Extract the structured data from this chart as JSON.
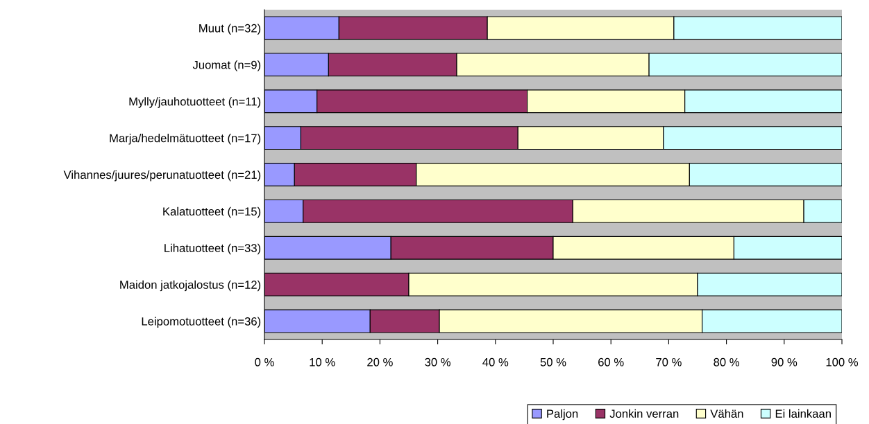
{
  "chart_data": {
    "type": "bar",
    "orientation": "horizontal",
    "stacked": true,
    "categories": [
      "Muut (n=32)",
      "Juomat (n=9)",
      "Mylly/jauhotuotteet (n=11)",
      "Marja/hedelmätuotteet (n=17)",
      "Vihannes/juures/perunatuotteet (n=21)",
      "Kalatuotteet (n=15)",
      "Lihatuotteet (n=33)",
      "Maidon jatkojalostus (n=12)",
      "Leipomotuotteet (n=36)"
    ],
    "series": [
      {
        "name": "Paljon",
        "color": "#9999ff",
        "values": [
          12.9,
          11.1,
          9.1,
          6.3,
          5.2,
          6.7,
          21.9,
          0,
          18.3
        ]
      },
      {
        "name": "Jonkin verran",
        "color": "#993366",
        "values": [
          25.7,
          22.2,
          36.4,
          37.6,
          21.1,
          46.7,
          28.1,
          25,
          12.0
        ]
      },
      {
        "name": "Vähän",
        "color": "#ffffcc",
        "values": [
          32.3,
          33.3,
          27.3,
          25.2,
          47.3,
          40.0,
          31.3,
          50,
          45.5
        ]
      },
      {
        "name": "Ei lainkaan",
        "color": "#ccffff",
        "values": [
          29.1,
          33.4,
          27.2,
          30.9,
          26.4,
          6.6,
          18.7,
          25,
          24.2
        ]
      }
    ],
    "xlim": [
      0,
      100
    ],
    "xticks": [
      {
        "value": 0,
        "label": "0 %"
      },
      {
        "value": 10,
        "label": "10 %"
      },
      {
        "value": 20,
        "label": "20 %"
      },
      {
        "value": 30,
        "label": "30 %"
      },
      {
        "value": 40,
        "label": "40 %"
      },
      {
        "value": 50,
        "label": "50 %"
      },
      {
        "value": 60,
        "label": "60 %"
      },
      {
        "value": 70,
        "label": "70 %"
      },
      {
        "value": 80,
        "label": "80 %"
      },
      {
        "value": 90,
        "label": "90 %"
      },
      {
        "value": 100,
        "label": "100 %"
      }
    ],
    "legend": "bottom right",
    "grid": false
  }
}
